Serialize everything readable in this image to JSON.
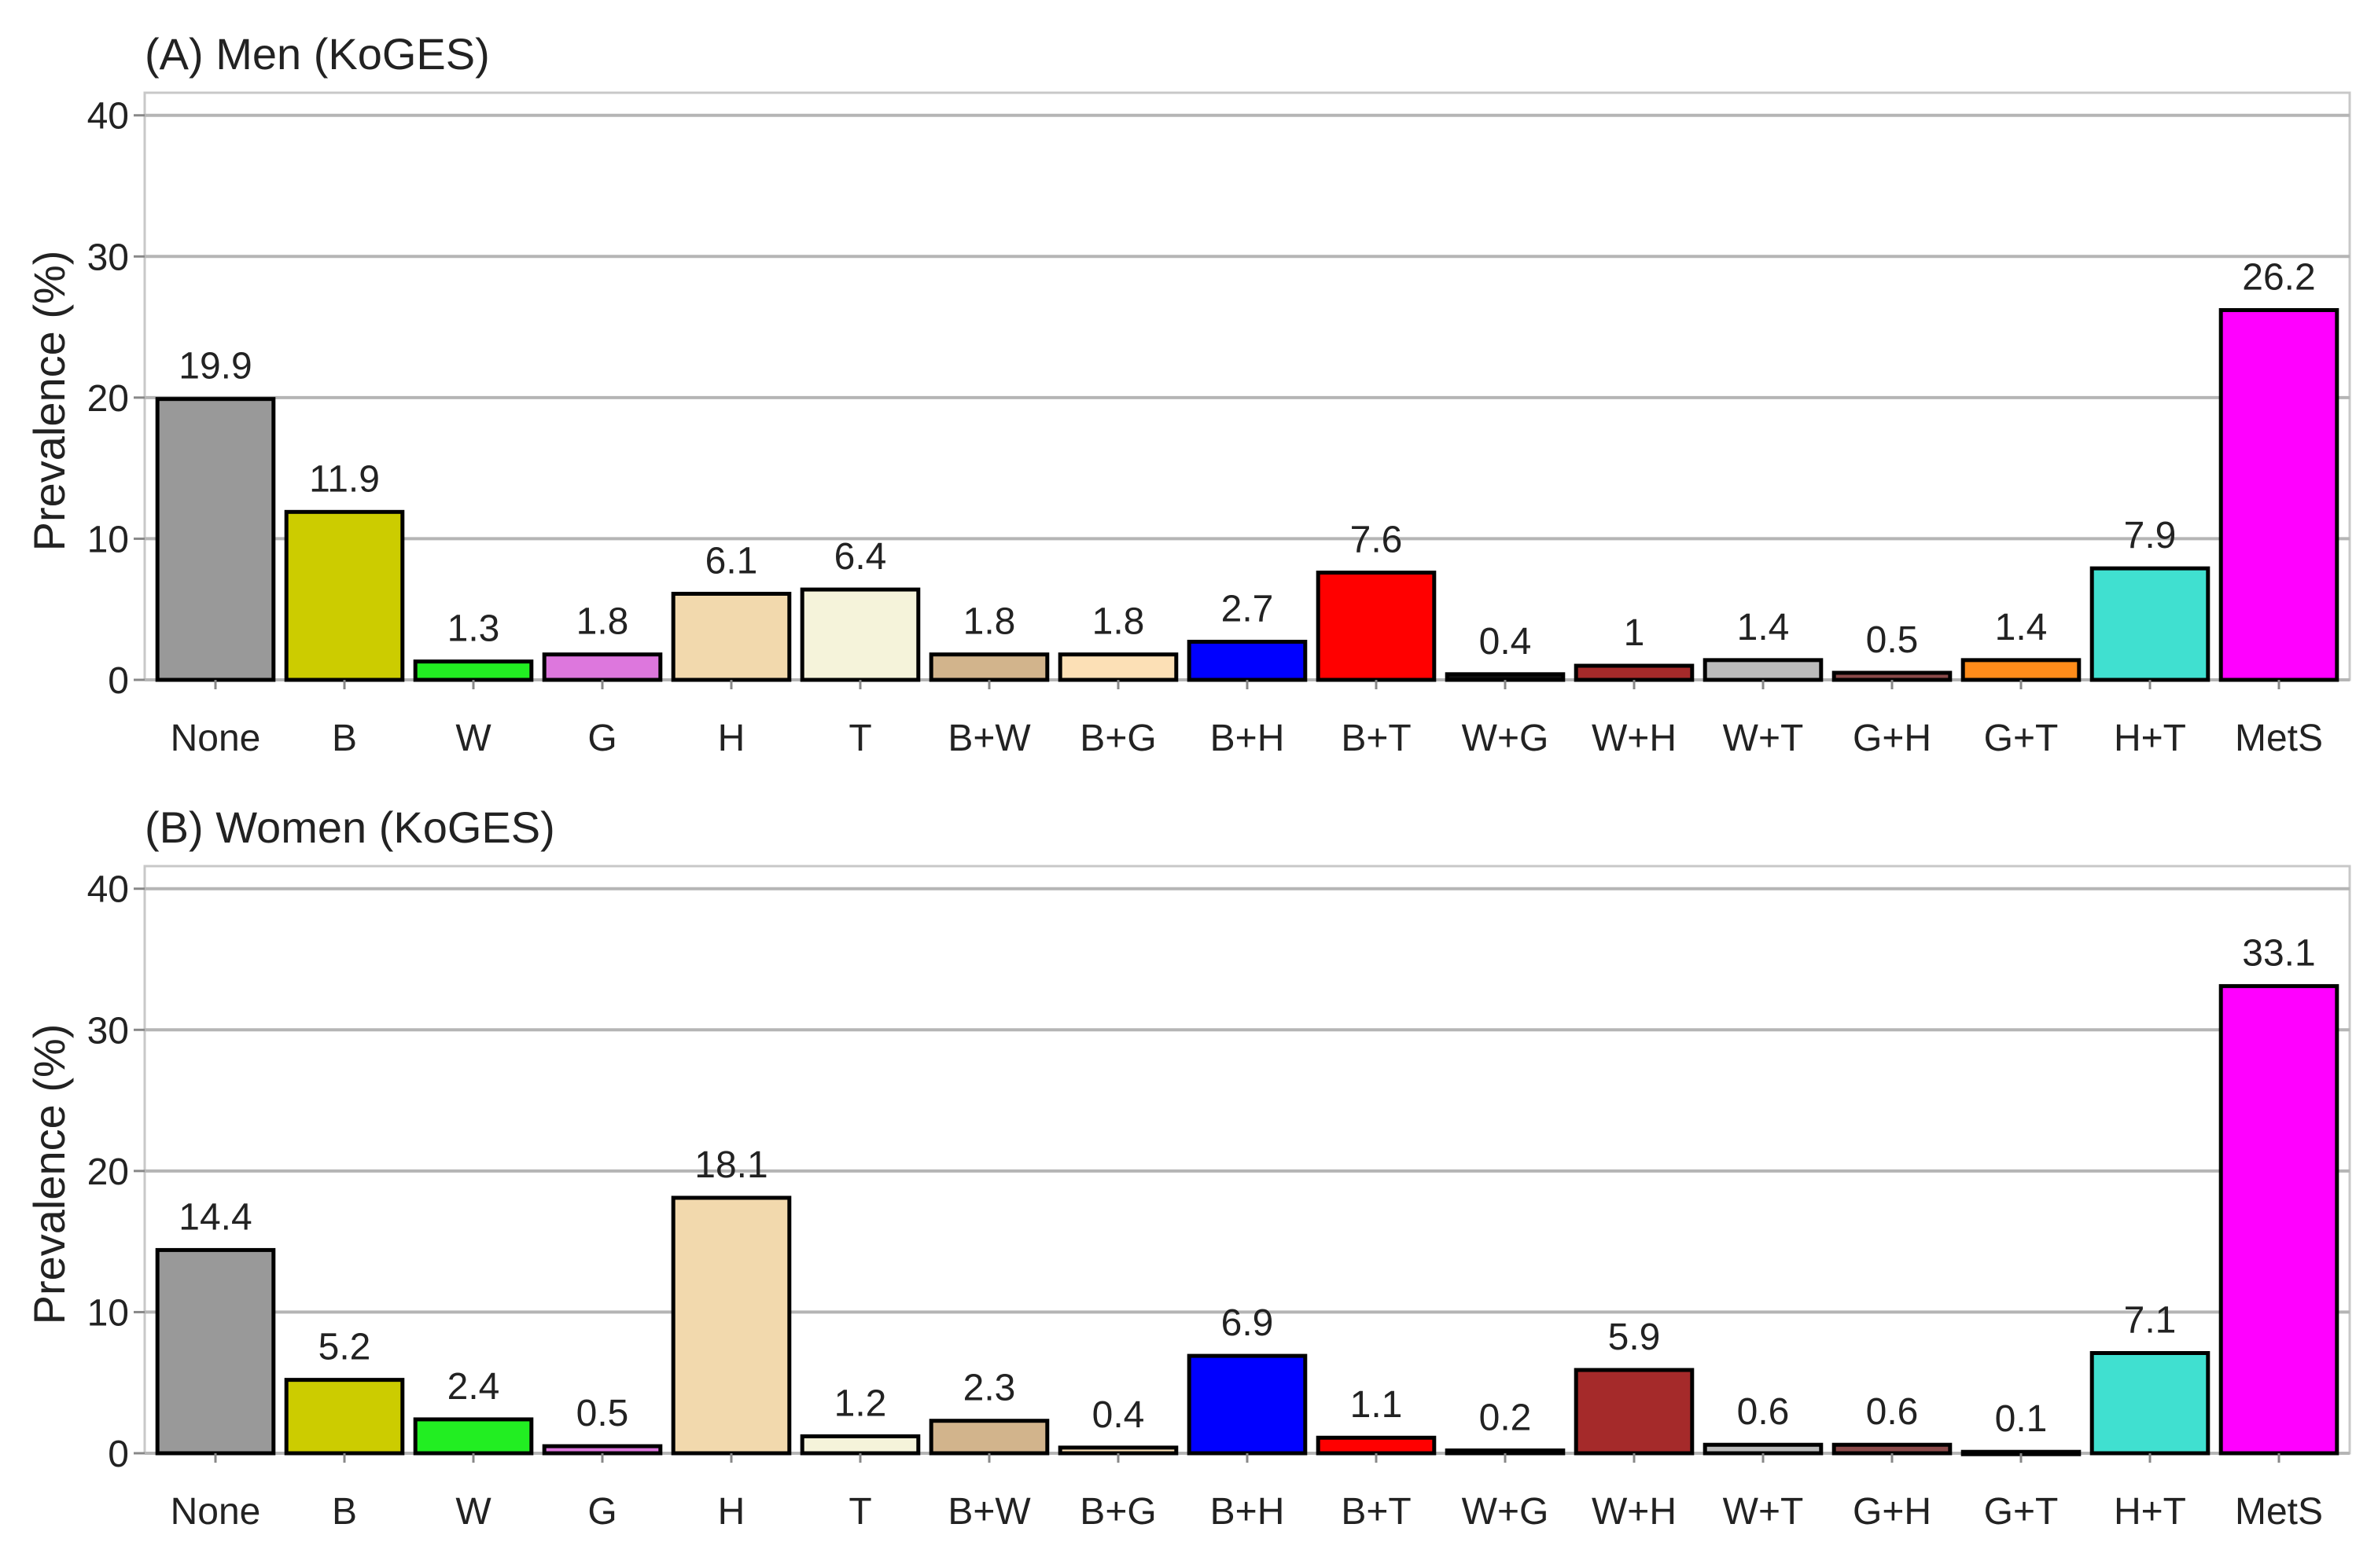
{
  "chart_data": [
    {
      "type": "bar",
      "title": "(A) Men (KoGES)",
      "ylabel": "Prevalence (%)",
      "xlabel": "",
      "ylim": [
        0,
        40
      ],
      "yticks": [
        0,
        10,
        20,
        30,
        40
      ],
      "grid": true,
      "categories": [
        "None",
        "B",
        "W",
        "G",
        "H",
        "T",
        "B+W",
        "B+G",
        "B+H",
        "B+T",
        "W+G",
        "W+H",
        "W+T",
        "G+H",
        "G+T",
        "H+T",
        "MetS"
      ],
      "values": [
        19.9,
        11.9,
        1.3,
        1.8,
        6.1,
        6.4,
        1.8,
        1.8,
        2.7,
        7.6,
        0.4,
        1,
        1.4,
        0.5,
        1.4,
        7.9,
        26.2
      ],
      "data_labels": [
        "19.9",
        "11.9",
        "1.3",
        "1.8",
        "6.1",
        "6.4",
        "1.8",
        "1.8",
        "2.7",
        "7.6",
        "0.4",
        "1",
        "1.4",
        "0.5",
        "1.4",
        "7.9",
        "26.2"
      ],
      "colors": [
        "#999999",
        "#cccc00",
        "#22ee22",
        "#dd77dd",
        "#f2d9ad",
        "#f5f3da",
        "#d2b48c",
        "#fce0b6",
        "#0000ff",
        "#ff0000",
        "#111111",
        "#a52a2a",
        "#bbbbbb",
        "#8b4a4a",
        "#ff8c1a",
        "#40e0d0",
        "#ff00ff"
      ]
    },
    {
      "type": "bar",
      "title": "(B) Women (KoGES)",
      "ylabel": "Prevalence (%)",
      "xlabel": "",
      "ylim": [
        0,
        40
      ],
      "yticks": [
        0,
        10,
        20,
        30,
        40
      ],
      "grid": true,
      "categories": [
        "None",
        "B",
        "W",
        "G",
        "H",
        "T",
        "B+W",
        "B+G",
        "B+H",
        "B+T",
        "W+G",
        "W+H",
        "W+T",
        "G+H",
        "G+T",
        "H+T",
        "MetS"
      ],
      "values": [
        14.4,
        5.2,
        2.4,
        0.5,
        18.1,
        1.2,
        2.3,
        0.4,
        6.9,
        1.1,
        0.2,
        5.9,
        0.6,
        0.6,
        0.1,
        7.1,
        33.1
      ],
      "data_labels": [
        "14.4",
        "5.2",
        "2.4",
        "0.5",
        "18.1",
        "1.2",
        "2.3",
        "0.4",
        "6.9",
        "1.1",
        "0.2",
        "5.9",
        "0.6",
        "0.6",
        "0.1",
        "7.1",
        "33.1"
      ],
      "colors": [
        "#999999",
        "#cccc00",
        "#22ee22",
        "#dd77dd",
        "#f2d9ad",
        "#f5f3da",
        "#d2b48c",
        "#fce0b6",
        "#0000ff",
        "#ff0000",
        "#111111",
        "#a52a2a",
        "#bbbbbb",
        "#8b4a4a",
        "#ff8c1a",
        "#40e0d0",
        "#ff00ff"
      ]
    }
  ]
}
